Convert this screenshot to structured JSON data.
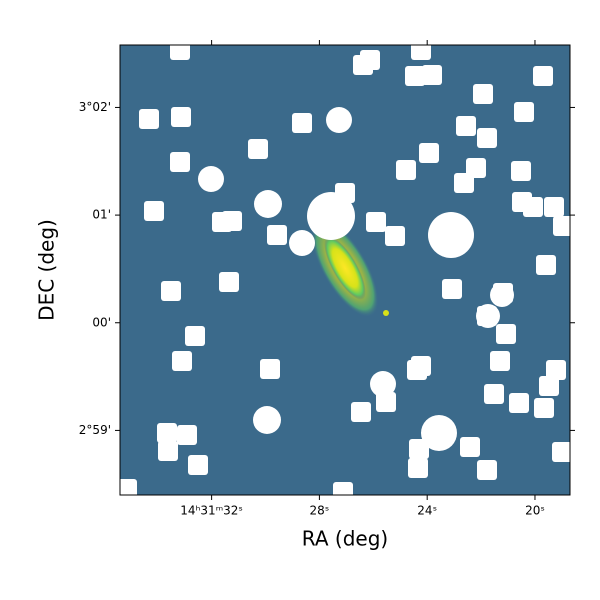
{
  "chart_data": {
    "type": "image",
    "x_label": "RA (deg)",
    "y_label": "DEC (deg)",
    "xlim": [
      35.4,
      18.7
    ],
    "xticks": [
      {
        "value": 32,
        "label": "14ʰ31ᵐ32ˢ"
      },
      {
        "value": 28,
        "label": "28ˢ"
      },
      {
        "value": 24,
        "label": "24ˢ"
      },
      {
        "value": 20,
        "label": "20ˢ"
      }
    ],
    "ylim": [
      -1.6,
      2.58
    ],
    "yticks": [
      {
        "value": 2,
        "label": "3°02'"
      },
      {
        "value": 1,
        "label": "01'"
      },
      {
        "value": 0,
        "label": "00'"
      },
      {
        "value": -1,
        "label": "2°59'"
      }
    ]
  }
}
